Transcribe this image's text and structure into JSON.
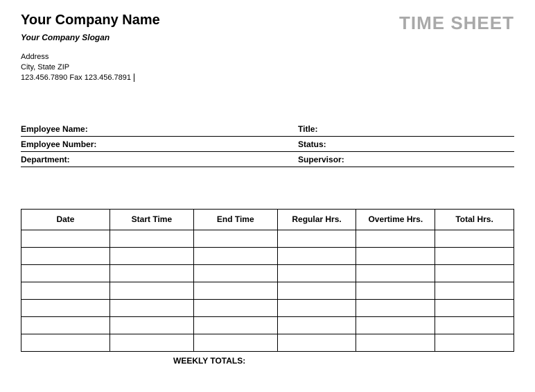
{
  "header": {
    "company_name": "Your Company Name",
    "company_slogan": "Your Company Slogan",
    "document_title": "TIME SHEET"
  },
  "address": {
    "line1": "Address",
    "line2": "City, State ZIP",
    "line3": "123.456.7890   Fax 123.456.7891"
  },
  "info_fields": {
    "row1_left": "Employee Name:",
    "row1_right": "Title:",
    "row2_left": "Employee Number:",
    "row2_right": "Status:",
    "row3_left": "Department:",
    "row3_right": "Supervisor:"
  },
  "table": {
    "headers": [
      "Date",
      "Start Time",
      "End Time",
      "Regular Hrs.",
      "Overtime Hrs.",
      "Total Hrs."
    ],
    "row_count": 7,
    "col_widths_pct": [
      18,
      17,
      17,
      16,
      16,
      16
    ]
  },
  "footer": {
    "totals_label": "WEEKLY TOTALS:"
  },
  "colors": {
    "text": "#000000",
    "muted_title": "#a9a9a9",
    "background": "#ffffff",
    "border": "#000000"
  }
}
